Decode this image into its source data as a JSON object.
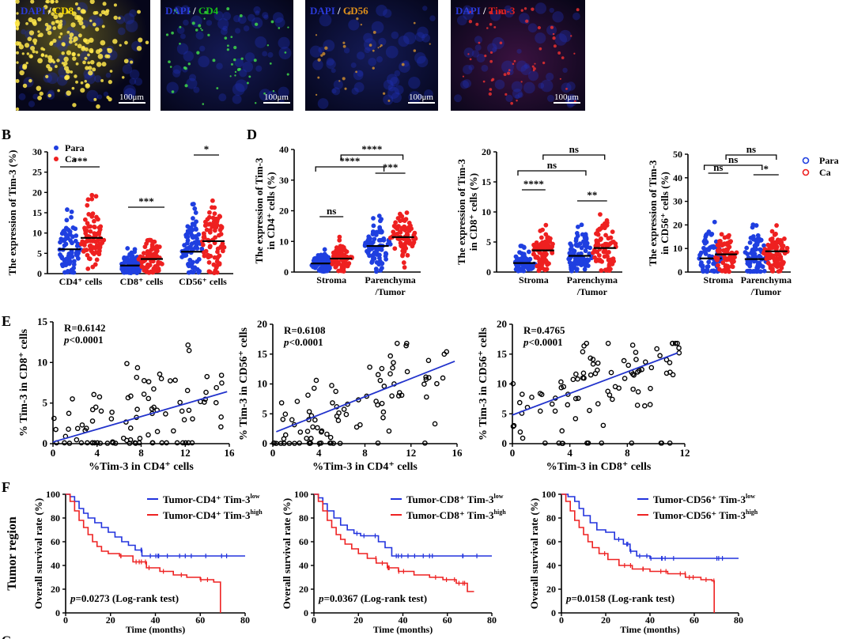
{
  "figure": {
    "panel_labels": {
      "B": "B",
      "D": "D",
      "E": "E",
      "F": "F",
      "G": "G"
    },
    "row_label_f": "Tumor region"
  },
  "micrographs": [
    {
      "dapi": "DAPI",
      "sep": " / ",
      "marker": "CD8",
      "marker_color": "#ffe000",
      "scale": "100μm"
    },
    {
      "dapi": "DAPI",
      "sep": " / ",
      "marker": "CD4",
      "marker_color": "#19c019",
      "scale": "100μm"
    },
    {
      "dapi": "DAPI",
      "sep": " / ",
      "marker": "CD56",
      "marker_color": "#e0901a",
      "scale": "100μm"
    },
    {
      "dapi": "DAPI",
      "sep": " / ",
      "marker": "Tim-3",
      "marker_color": "#e02020",
      "scale": "100μm"
    }
  ],
  "colors": {
    "para": "#1f3fe0",
    "ca": "#ee2020",
    "dapi": "#2a3ad8",
    "fit": "#2233cc",
    "low": "#2233dd",
    "high": "#ee2222"
  },
  "chart_data": [
    {
      "id": "B",
      "type": "scatter",
      "ylabel": "The expression of Tim-3 (%)",
      "ylim": [
        0,
        30
      ],
      "yticks": [
        "0",
        "5",
        "10",
        "15",
        "20",
        "25",
        "30"
      ],
      "categories": [
        "CD4⁺ cells",
        "CD8⁺ cells",
        "CD56⁺ cells"
      ],
      "series": [
        {
          "name": "Para",
          "means": [
            6.0,
            2.0,
            5.4
          ]
        },
        {
          "name": "Ca",
          "means": [
            8.8,
            3.6,
            8.0
          ]
        }
      ],
      "legend": [
        "Para",
        "Ca"
      ],
      "significance": [
        "***",
        "***",
        "*"
      ]
    },
    {
      "id": "D1",
      "type": "scatter",
      "ylabel": [
        "The expression of Tim-3",
        "in CD4⁺ cells (%)"
      ],
      "ylim": [
        0,
        40
      ],
      "yticks": [
        "0",
        "10",
        "20",
        "30",
        "40"
      ],
      "categories": [
        "Stroma",
        "Parenchyma",
        "/Tumor"
      ],
      "series": [
        {
          "name": "Para",
          "means": [
            2.8,
            8.5
          ]
        },
        {
          "name": "Ca",
          "means": [
            4.4,
            11.4
          ]
        }
      ],
      "significance": {
        "stroma": "ns",
        "tumor": "***",
        "cross1": "****",
        "cross2": "****"
      }
    },
    {
      "id": "D2",
      "type": "scatter",
      "ylabel": [
        "The expression of Tim-3",
        "in CD8⁺ cells (%)"
      ],
      "ylim": [
        0,
        20
      ],
      "yticks": [
        "0",
        "5",
        "10",
        "15",
        "20"
      ],
      "categories": [
        "Stroma",
        "Parenchyma",
        "/Tumor"
      ],
      "series": [
        {
          "name": "Para",
          "means": [
            1.5,
            2.7
          ]
        },
        {
          "name": "Ca",
          "means": [
            3.6,
            4.0
          ]
        }
      ],
      "significance": {
        "stroma": "****",
        "tumor": "**",
        "cross1": "ns",
        "cross2": "ns"
      }
    },
    {
      "id": "D3",
      "type": "scatter",
      "ylabel": [
        "The expression of Tim-3",
        "in CD56⁺ cells (%)"
      ],
      "ylim": [
        0,
        50
      ],
      "yticks": [
        "0",
        "10",
        "20",
        "30",
        "40",
        "50"
      ],
      "categories": [
        "Stroma",
        "Parenchyma",
        "/Tumor"
      ],
      "series": [
        {
          "name": "Para",
          "means": [
            5.8,
            5.5
          ]
        },
        {
          "name": "Ca",
          "means": [
            7.5,
            8.8
          ]
        }
      ],
      "legend": [
        "Para",
        "Ca"
      ],
      "significance": {
        "stroma": "ns",
        "tumor": "*",
        "cross1": "ns",
        "cross2": "ns"
      }
    },
    {
      "id": "E1",
      "type": "scatter",
      "ylabel": "% Tim-3 in CD8⁺ cells",
      "xlabel": "%Tim-3 in CD4⁺ cells",
      "xlim": [
        0,
        16
      ],
      "ylim": [
        0,
        15
      ],
      "xticks": [
        "0",
        "4",
        "8",
        "12",
        "16"
      ],
      "yticks": [
        "0",
        "5",
        "10",
        "15"
      ],
      "R": "R=0.6142",
      "p_italic": "p",
      "p_rest": "<0.0001",
      "fit": {
        "x0": 0,
        "y0": 0.2,
        "x1": 15.8,
        "y1": 6.4
      }
    },
    {
      "id": "E2",
      "type": "scatter",
      "ylabel": "% Tim-3 in CD56⁺ cells",
      "xlabel": "%Tim-3 in CD4⁺ cells",
      "xlim": [
        0,
        16
      ],
      "ylim": [
        0,
        20
      ],
      "xticks": [
        "0",
        "4",
        "8",
        "12",
        "16"
      ],
      "yticks": [
        "0",
        "5",
        "10",
        "15",
        "20"
      ],
      "R": "R=0.6108",
      "p_italic": "p",
      "p_rest": "<0.0001",
      "fit": {
        "x0": 0.3,
        "y0": 2.0,
        "x1": 15.8,
        "y1": 13.8
      }
    },
    {
      "id": "E3",
      "type": "scatter",
      "ylabel": "% Tim-3 in CD56⁺ cells",
      "xlabel": "%Tim-3 in CD8⁺ cells",
      "xlim": [
        0,
        12
      ],
      "ylim": [
        0,
        20
      ],
      "xticks": [
        "0",
        "4",
        "8",
        "12"
      ],
      "yticks": [
        "0",
        "5",
        "10",
        "15",
        "20"
      ],
      "R": "R=0.4765",
      "p_italic": "p",
      "p_rest": "<0.0001",
      "fit": {
        "x0": 0,
        "y0": 4.8,
        "x1": 11.5,
        "y1": 15.2
      }
    },
    {
      "id": "F1",
      "type": "line",
      "ylabel": "Overall survival rate (%)",
      "xlabel": "Time (months)",
      "xlim": [
        0,
        80
      ],
      "ylim": [
        0,
        100
      ],
      "xticks": [
        "0",
        "20",
        "40",
        "60",
        "80"
      ],
      "yticks": [
        "0",
        "20",
        "40",
        "60",
        "80",
        "100"
      ],
      "series": [
        {
          "name": "Tumor-CD4⁺ Tim-3",
          "sup": "low",
          "steps": [
            [
              0,
              100
            ],
            [
              2,
              98
            ],
            [
              4,
              94
            ],
            [
              6,
              88
            ],
            [
              8,
              84
            ],
            [
              10,
              80
            ],
            [
              13,
              76
            ],
            [
              16,
              72
            ],
            [
              19,
              68
            ],
            [
              22,
              64
            ],
            [
              25,
              60
            ],
            [
              28,
              57
            ],
            [
              31,
              53
            ],
            [
              34,
              48
            ],
            [
              80,
              48
            ]
          ]
        },
        {
          "name": "Tumor-CD4⁺ Tim-3",
          "sup": "high",
          "steps": [
            [
              0,
              100
            ],
            [
              2,
              94
            ],
            [
              4,
              86
            ],
            [
              6,
              78
            ],
            [
              8,
              72
            ],
            [
              10,
              66
            ],
            [
              12,
              60
            ],
            [
              14,
              56
            ],
            [
              16,
              52
            ],
            [
              19,
              50
            ],
            [
              24,
              48
            ],
            [
              30,
              43
            ],
            [
              36,
              38
            ],
            [
              42,
              35
            ],
            [
              48,
              32
            ],
            [
              54,
              30
            ],
            [
              60,
              28
            ],
            [
              66,
              26
            ],
            [
              69,
              26
            ],
            [
              69,
              0
            ]
          ]
        }
      ],
      "p_italic": "p",
      "p_rest": "=0.0273 (Log-rank test)"
    },
    {
      "id": "F2",
      "type": "line",
      "ylabel": "Overall survival rate (%)",
      "xlabel": "Time (months)",
      "xlim": [
        0,
        80
      ],
      "ylim": [
        0,
        100
      ],
      "xticks": [
        "0",
        "20",
        "40",
        "60",
        "80"
      ],
      "yticks": [
        "0",
        "20",
        "40",
        "60",
        "80",
        "100"
      ],
      "series": [
        {
          "name": "Tumor-CD8⁺ Tim-3",
          "sup": "low",
          "steps": [
            [
              0,
              100
            ],
            [
              2,
              97
            ],
            [
              4,
              92
            ],
            [
              6,
              86
            ],
            [
              9,
              80
            ],
            [
              12,
              74
            ],
            [
              15,
              70
            ],
            [
              18,
              67
            ],
            [
              21,
              65
            ],
            [
              27,
              65
            ],
            [
              29,
              60
            ],
            [
              32,
              55
            ],
            [
              35,
              48
            ],
            [
              80,
              48
            ]
          ]
        },
        {
          "name": "Tumor-CD8⁺ Tim-3",
          "sup": "high",
          "steps": [
            [
              0,
              100
            ],
            [
              2,
              94
            ],
            [
              4,
              86
            ],
            [
              6,
              78
            ],
            [
              8,
              72
            ],
            [
              10,
              66
            ],
            [
              12,
              62
            ],
            [
              14,
              58
            ],
            [
              17,
              54
            ],
            [
              20,
              50
            ],
            [
              24,
              46
            ],
            [
              28,
              42
            ],
            [
              33,
              38
            ],
            [
              38,
              35
            ],
            [
              45,
              32
            ],
            [
              52,
              30
            ],
            [
              58,
              28
            ],
            [
              64,
              25
            ],
            [
              69,
              25
            ],
            [
              69,
              18
            ],
            [
              72,
              18
            ]
          ]
        }
      ],
      "p_italic": "p",
      "p_rest": "=0.0367 (Log-rank test)"
    },
    {
      "id": "F3",
      "type": "line",
      "ylabel": "Overall survival rate (%)",
      "xlabel": "Time (months)",
      "xlim": [
        0,
        80
      ],
      "ylim": [
        0,
        100
      ],
      "xticks": [
        "0",
        "20",
        "40",
        "60",
        "80"
      ],
      "yticks": [
        "0",
        "20",
        "40",
        "60",
        "80",
        "100"
      ],
      "series": [
        {
          "name": "Tumor-CD56⁺ Tim-3",
          "sup": "low",
          "steps": [
            [
              0,
              100
            ],
            [
              3,
              98
            ],
            [
              6,
              94
            ],
            [
              8,
              88
            ],
            [
              10,
              82
            ],
            [
              13,
              76
            ],
            [
              16,
              70
            ],
            [
              20,
              68
            ],
            [
              24,
              62
            ],
            [
              28,
              58
            ],
            [
              31,
              52
            ],
            [
              34,
              48
            ],
            [
              40,
              46
            ],
            [
              80,
              46
            ]
          ]
        },
        {
          "name": "Tumor-CD56⁺ Tim-3",
          "sup": "high",
          "steps": [
            [
              0,
              100
            ],
            [
              2,
              94
            ],
            [
              4,
              86
            ],
            [
              6,
              78
            ],
            [
              8,
              72
            ],
            [
              10,
              66
            ],
            [
              12,
              60
            ],
            [
              14,
              55
            ],
            [
              17,
              50
            ],
            [
              21,
              45
            ],
            [
              26,
              40
            ],
            [
              32,
              37
            ],
            [
              40,
              35
            ],
            [
              48,
              33
            ],
            [
              56,
              30
            ],
            [
              63,
              28
            ],
            [
              68,
              27
            ],
            [
              69,
              27
            ],
            [
              69,
              0
            ]
          ]
        }
      ],
      "p_italic": "p",
      "p_rest": "=0.0158 (Log-rank test)"
    }
  ]
}
